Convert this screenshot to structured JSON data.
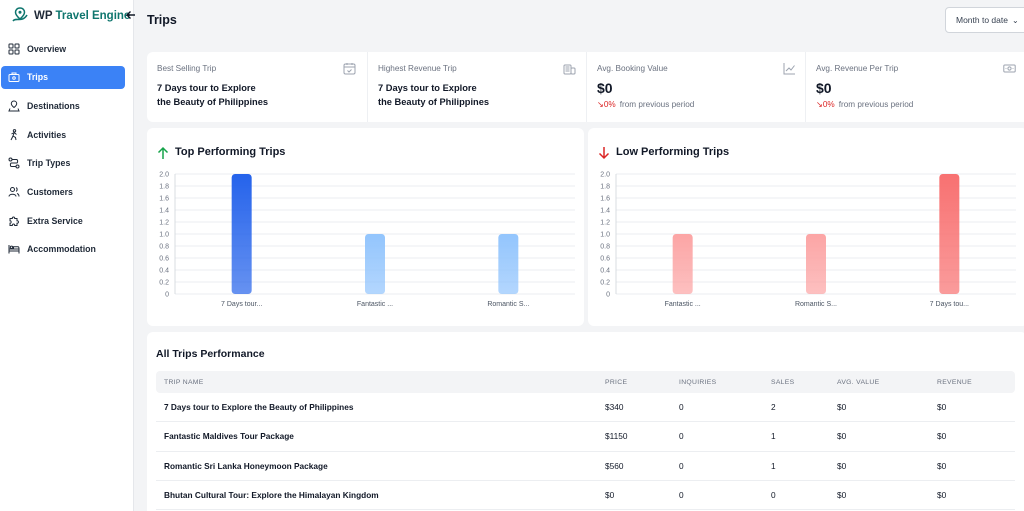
{
  "brand": {
    "prefix": "WP",
    "name": "Travel Engine"
  },
  "sidebar": {
    "items": [
      {
        "label": "Overview",
        "icon": "grid-icon",
        "active": false
      },
      {
        "label": "Trips",
        "icon": "suitcase-icon",
        "active": true
      },
      {
        "label": "Destinations",
        "icon": "map-pin-icon",
        "active": false
      },
      {
        "label": "Activities",
        "icon": "hiker-icon",
        "active": false
      },
      {
        "label": "Trip Types",
        "icon": "route-icon",
        "active": false
      },
      {
        "label": "Customers",
        "icon": "users-icon",
        "active": false
      },
      {
        "label": "Extra Service",
        "icon": "puzzle-icon",
        "active": false
      },
      {
        "label": "Accommodation",
        "icon": "bed-icon",
        "active": false
      }
    ]
  },
  "header": {
    "title": "Trips",
    "date_range": "Month to date"
  },
  "stats": [
    {
      "label": "Best Selling Trip",
      "title_line1": "7 Days tour to Explore",
      "title_line2": "the Beauty of Philippines",
      "icon": "calendar-check-icon"
    },
    {
      "label": "Highest Revenue Trip",
      "title_line1": "7 Days tour to Explore",
      "title_line2": "the Beauty of Philippines",
      "icon": "coins-icon"
    },
    {
      "label": "Avg. Booking Value",
      "value": "$0",
      "change": "0%",
      "change_text": "from previous period",
      "icon": "trend-chart-icon"
    },
    {
      "label": "Avg. Revenue Per Trip",
      "value": "$0",
      "change": "0%",
      "change_text": "from previous period",
      "icon": "cash-icon"
    }
  ],
  "top_chart": {
    "title": "Top Performing Trips"
  },
  "low_chart": {
    "title": "Low Performing Trips"
  },
  "chart_data": [
    {
      "type": "bar",
      "title": "Top Performing Trips",
      "categories": [
        "7 Days tour...",
        "Fantastic ...",
        "Romantic S..."
      ],
      "values": [
        2,
        1,
        1
      ],
      "ylim": [
        0,
        2.0
      ],
      "yticks": [
        "2.0",
        "1.8",
        "1.6",
        "1.4",
        "1.2",
        "1.0",
        "0.8",
        "0.6",
        "0.4",
        "0.2",
        "0"
      ],
      "colors": [
        "#2563eb",
        "#93c5fd",
        "#93c5fd"
      ],
      "grid": true
    },
    {
      "type": "bar",
      "title": "Low Performing Trips",
      "categories": [
        "Fantastic ...",
        "Romantic S...",
        "7 Days tou..."
      ],
      "values": [
        1,
        1,
        2
      ],
      "ylim": [
        0,
        2.0
      ],
      "yticks": [
        "2.0",
        "1.8",
        "1.6",
        "1.4",
        "1.2",
        "1.0",
        "0.8",
        "0.6",
        "0.4",
        "0.2",
        "0"
      ],
      "colors": [
        "#fca5a5",
        "#fca5a5",
        "#f87171"
      ],
      "grid": true
    }
  ],
  "table": {
    "title": "All Trips Performance",
    "headers": [
      "TRIP NAME",
      "PRICE",
      "INQUIRIES",
      "SALES",
      "AVG. VALUE",
      "REVENUE"
    ],
    "rows": [
      [
        "7 Days tour to Explore the Beauty of Philippines",
        "$340",
        "0",
        "2",
        "$0",
        "$0"
      ],
      [
        "Fantastic Maldives Tour Package",
        "$1150",
        "0",
        "1",
        "$0",
        "$0"
      ],
      [
        "Romantic Sri Lanka Honeymoon Package",
        "$560",
        "0",
        "1",
        "$0",
        "$0"
      ],
      [
        "Bhutan Cultural Tour: Explore the Himalayan Kingdom",
        "$0",
        "0",
        "0",
        "$0",
        "$0"
      ]
    ]
  }
}
